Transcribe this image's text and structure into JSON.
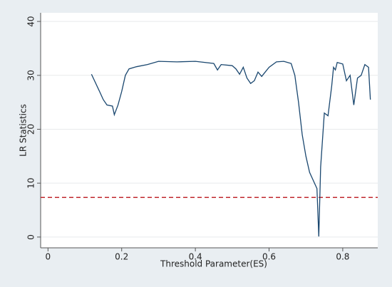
{
  "chart_data": {
    "type": "line",
    "x_label": "Threshold Parameter(ES)",
    "y_label": "LR Statistics",
    "xlim": [
      -0.02,
      0.895
    ],
    "ylim": [
      -2,
      41.6
    ],
    "xticks": [
      0,
      0.2,
      0.4,
      0.6,
      0.8
    ],
    "yticks": [
      0,
      10,
      20,
      30,
      40
    ],
    "grid": true,
    "reference_line": {
      "value": 7.35,
      "color": "#c0282e",
      "style": "dashed"
    },
    "series": [
      {
        "color": "#1a476f",
        "x": [
          0.118,
          0.14,
          0.15,
          0.16,
          0.175,
          0.18,
          0.19,
          0.2,
          0.21,
          0.22,
          0.24,
          0.27,
          0.3,
          0.35,
          0.4,
          0.45,
          0.46,
          0.47,
          0.5,
          0.51,
          0.52,
          0.53,
          0.54,
          0.55,
          0.56,
          0.57,
          0.58,
          0.6,
          0.62,
          0.64,
          0.66,
          0.67,
          0.68,
          0.69,
          0.7,
          0.71,
          0.72,
          0.73,
          0.735,
          0.74,
          0.745,
          0.75,
          0.76,
          0.77,
          0.775,
          0.78,
          0.785,
          0.8,
          0.81,
          0.82,
          0.83,
          0.84,
          0.85,
          0.86,
          0.87,
          0.875
        ],
        "values": [
          30.2,
          27,
          25.5,
          24.5,
          24.3,
          22.7,
          24.5,
          27,
          30,
          31.2,
          31.6,
          32,
          32.6,
          32.5,
          32.6,
          32.2,
          31,
          32,
          31.8,
          31.2,
          30.2,
          31.5,
          29.5,
          28.5,
          29,
          30.6,
          29.8,
          31.5,
          32.5,
          32.6,
          32.2,
          30,
          25,
          19,
          15,
          12,
          10.5,
          9,
          0.1,
          13,
          18,
          23,
          22.5,
          28,
          31.5,
          31,
          32.4,
          32.1,
          29,
          30,
          24.5,
          29.5,
          30,
          32,
          31.5,
          25.5
        ]
      }
    ]
  }
}
